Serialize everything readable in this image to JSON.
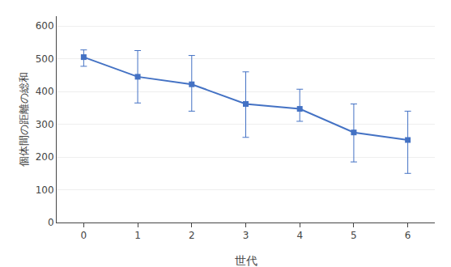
{
  "chart_data": {
    "type": "line",
    "xlabel": "世代",
    "ylabel": "個体間の距離の総和",
    "x": [
      0,
      1,
      2,
      3,
      4,
      5,
      6
    ],
    "values": [
      505,
      445,
      422,
      362,
      347,
      275,
      252
    ],
    "error_upper": [
      22,
      80,
      88,
      98,
      60,
      87,
      88
    ],
    "error_lower": [
      28,
      80,
      82,
      102,
      38,
      90,
      102
    ],
    "color": "#4472C4",
    "marker": "square",
    "xlim": [
      -0.5,
      6.5
    ],
    "xticks": [
      0,
      1,
      2,
      3,
      4,
      5,
      6
    ],
    "ylim": [
      0,
      630
    ],
    "yticks": [
      0,
      100,
      200,
      300,
      400,
      500,
      600
    ],
    "grid": "y"
  }
}
